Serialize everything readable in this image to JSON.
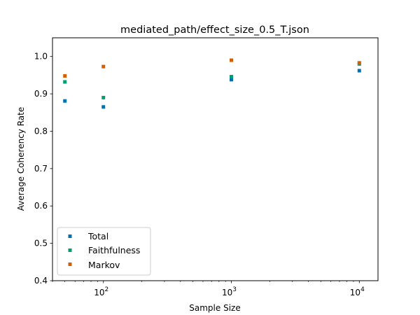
{
  "chart_data": {
    "type": "scatter",
    "title": "mediated_path/effect_size_0.5_T.json",
    "xlabel": "Sample Size",
    "ylabel": "Average Coherency Rate",
    "xscale": "log",
    "xlim": [
      40,
      14000
    ],
    "ylim": [
      0.4,
      1.05
    ],
    "yticks": [
      0.4,
      0.5,
      0.6,
      0.7,
      0.8,
      0.9,
      1.0
    ],
    "ytick_labels": [
      "0.4",
      "0.5",
      "0.6",
      "0.7",
      "0.8",
      "0.9",
      "1.0"
    ],
    "xticks": [
      {
        "value": 100,
        "base": "10",
        "exp": "2"
      },
      {
        "value": 1000,
        "base": "10",
        "exp": "3"
      },
      {
        "value": 10000,
        "base": "10",
        "exp": "4"
      }
    ],
    "x": [
      50,
      100,
      1000,
      10000
    ],
    "series": [
      {
        "name": "Total",
        "color": "#0072b2",
        "values": [
          0.881,
          0.865,
          0.938,
          0.962
        ]
      },
      {
        "name": "Faithfulness",
        "color": "#009e73",
        "values": [
          0.932,
          0.89,
          0.946,
          0.98
        ]
      },
      {
        "name": "Markov",
        "color": "#d55e00",
        "values": [
          0.948,
          0.973,
          0.99,
          0.983
        ]
      }
    ],
    "legend_position": "lower-left",
    "grid": false
  }
}
